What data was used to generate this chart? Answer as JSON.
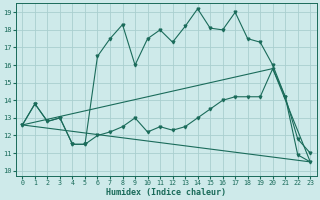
{
  "xlabel": "Humidex (Indice chaleur)",
  "bg_color": "#ceeaea",
  "grid_color": "#aacfcf",
  "line_color": "#1a6b5a",
  "xlim": [
    -0.5,
    23.5
  ],
  "ylim": [
    9.7,
    19.5
  ],
  "yticks": [
    10,
    11,
    12,
    13,
    14,
    15,
    16,
    17,
    18,
    19
  ],
  "xticks": [
    0,
    1,
    2,
    3,
    4,
    5,
    6,
    7,
    8,
    9,
    10,
    11,
    12,
    13,
    14,
    15,
    16,
    17,
    18,
    19,
    20,
    21,
    22,
    23
  ],
  "series1_x": [
    0,
    1,
    2,
    3,
    4,
    5,
    6,
    7,
    8,
    9,
    10,
    11,
    12,
    13,
    14,
    15,
    16,
    17,
    18,
    19,
    20,
    21,
    22,
    23
  ],
  "series1_y": [
    12.6,
    13.8,
    12.8,
    13.0,
    11.5,
    11.5,
    16.5,
    17.5,
    18.3,
    16.0,
    17.5,
    18.0,
    17.3,
    18.2,
    19.2,
    18.1,
    18.0,
    19.0,
    17.5,
    17.3,
    16.0,
    14.2,
    11.8,
    11.0
  ],
  "series2_x": [
    0,
    1,
    2,
    3,
    4,
    5,
    6,
    7,
    8,
    9,
    10,
    11,
    12,
    13,
    14,
    15,
    16,
    17,
    18,
    19,
    20,
    21,
    22,
    23
  ],
  "series2_y": [
    12.6,
    13.8,
    12.8,
    13.0,
    11.5,
    11.5,
    12.0,
    12.2,
    12.5,
    13.0,
    12.2,
    12.5,
    12.3,
    12.5,
    13.0,
    13.5,
    14.0,
    14.2,
    14.2,
    14.2,
    15.8,
    14.2,
    10.9,
    10.5
  ],
  "series3_x": [
    0,
    23
  ],
  "series3_y": [
    12.6,
    10.5
  ],
  "series4_x": [
    0,
    20,
    23
  ],
  "series4_y": [
    12.6,
    15.8,
    10.5
  ]
}
